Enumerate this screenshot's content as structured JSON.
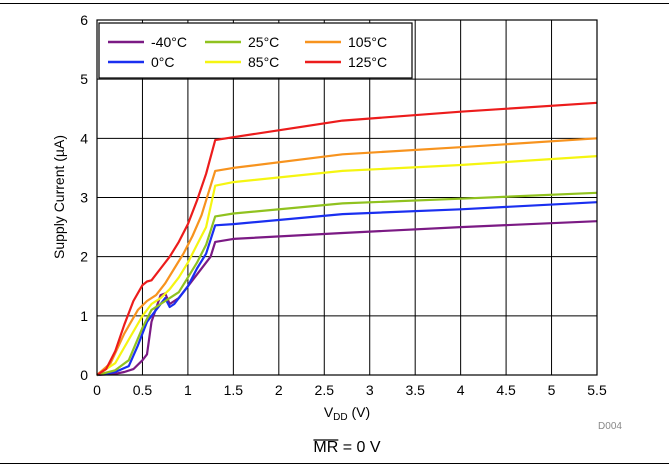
{
  "colors": {
    "grid": "#000000",
    "minus40": "#7b1a84",
    "zero": "#1a2ff0",
    "p25": "#90c21f",
    "p85": "#f5f511",
    "p105": "#f7931e",
    "p125": "#ec1c1c"
  },
  "chart_data": {
    "type": "line",
    "xlabel": {
      "main": "V",
      "sub": "DD",
      "unit": " (V)"
    },
    "ylabel": "Supply Current  (µA)",
    "xlim": [
      0,
      5.5
    ],
    "ylim": [
      0,
      6
    ],
    "xticks": [
      "0",
      "0.5",
      "1",
      "1.5",
      "2",
      "2.5",
      "3",
      "3.5",
      "4",
      "4.5",
      "5",
      "5.5"
    ],
    "yticks": [
      "0",
      "1",
      "2",
      "3",
      "4",
      "5",
      "6"
    ],
    "grid": true,
    "legend_position": "top-left",
    "figure_id": "D004",
    "caption": {
      "overline": "MR",
      "rest": " = 0 V"
    },
    "series": [
      {
        "name": "-40°C",
        "color": "#7b1a84",
        "x": [
          0,
          0.2,
          0.3,
          0.4,
          0.5,
          0.55,
          0.6,
          0.7,
          0.75,
          0.8,
          0.9,
          1.0,
          1.1,
          1.2,
          1.25,
          1.3,
          1.5,
          2.7,
          4.0,
          5.5
        ],
        "y": [
          0,
          0.02,
          0.05,
          0.1,
          0.25,
          0.35,
          0.9,
          1.35,
          1.38,
          1.2,
          1.3,
          1.5,
          1.7,
          1.9,
          2.0,
          2.25,
          2.3,
          2.4,
          2.5,
          2.6
        ]
      },
      {
        "name": "0°C",
        "color": "#1a2ff0",
        "x": [
          0,
          0.2,
          0.35,
          0.45,
          0.55,
          0.65,
          0.75,
          0.8,
          0.85,
          0.9,
          1.0,
          1.1,
          1.2,
          1.3,
          1.5,
          2.7,
          4.0,
          5.5
        ],
        "y": [
          0,
          0.05,
          0.15,
          0.5,
          0.9,
          1.1,
          1.3,
          1.15,
          1.2,
          1.3,
          1.5,
          1.8,
          2.05,
          2.53,
          2.55,
          2.72,
          2.8,
          2.92
        ]
      },
      {
        "name": "25°C",
        "color": "#90c21f",
        "x": [
          0,
          0.2,
          0.35,
          0.5,
          0.6,
          0.7,
          0.8,
          0.9,
          1.0,
          1.1,
          1.2,
          1.3,
          1.5,
          2.7,
          4.0,
          5.5
        ],
        "y": [
          0,
          0.08,
          0.25,
          0.8,
          1.1,
          1.2,
          1.3,
          1.4,
          1.65,
          1.9,
          2.2,
          2.68,
          2.73,
          2.9,
          2.98,
          3.08
        ]
      },
      {
        "name": "85°C",
        "color": "#f5f511",
        "x": [
          0,
          0.2,
          0.35,
          0.5,
          0.6,
          0.7,
          0.8,
          0.9,
          1.0,
          1.1,
          1.2,
          1.3,
          1.5,
          2.7,
          4.0,
          5.5
        ],
        "y": [
          0,
          0.2,
          0.6,
          1.0,
          1.2,
          1.3,
          1.45,
          1.65,
          1.9,
          2.2,
          2.5,
          3.2,
          3.26,
          3.45,
          3.55,
          3.7
        ]
      },
      {
        "name": "105°C",
        "color": "#f7931e",
        "x": [
          0,
          0.15,
          0.3,
          0.45,
          0.55,
          0.65,
          0.75,
          0.85,
          0.95,
          1.05,
          1.15,
          1.3,
          1.5,
          2.7,
          4.0,
          5.5
        ],
        "y": [
          0,
          0.2,
          0.7,
          1.1,
          1.25,
          1.35,
          1.55,
          1.8,
          2.05,
          2.35,
          2.7,
          3.45,
          3.5,
          3.73,
          3.85,
          4.0
        ]
      },
      {
        "name": "125°C",
        "color": "#ec1c1c",
        "x": [
          0,
          0.1,
          0.2,
          0.3,
          0.4,
          0.5,
          0.55,
          0.6,
          0.7,
          0.8,
          0.9,
          1.0,
          1.1,
          1.2,
          1.3,
          1.5,
          2.7,
          4.0,
          5.5
        ],
        "y": [
          0,
          0.1,
          0.4,
          0.85,
          1.25,
          1.52,
          1.58,
          1.6,
          1.8,
          2.0,
          2.25,
          2.55,
          2.95,
          3.4,
          3.97,
          4.02,
          4.3,
          4.45,
          4.6
        ]
      }
    ]
  }
}
